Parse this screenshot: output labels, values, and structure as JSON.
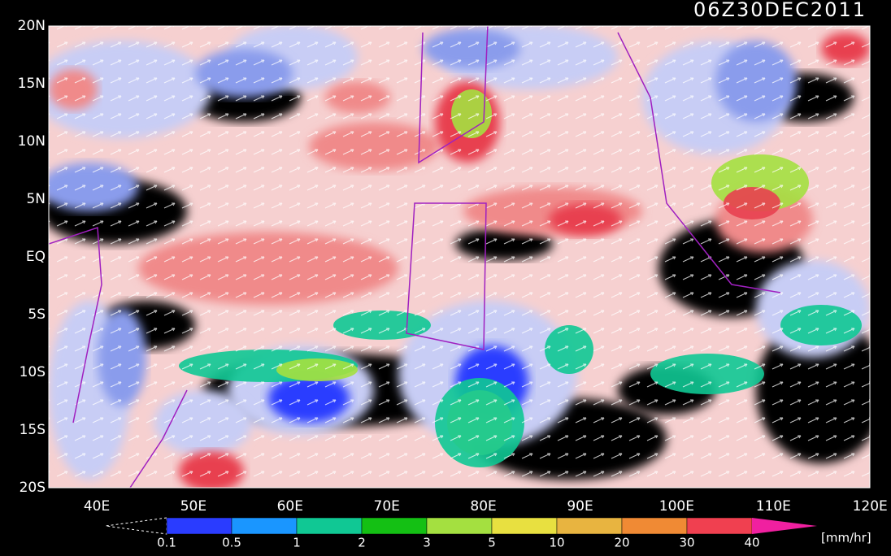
{
  "title": "06Z30DEC2011",
  "lat_labels": [
    "20N",
    "15N",
    "10N",
    "5N",
    "EQ",
    "5S",
    "10S",
    "15S",
    "20S"
  ],
  "lon_labels": [
    "40E",
    "50E",
    "60E",
    "70E",
    "80E",
    "90E",
    "100E",
    "110E",
    "120E"
  ],
  "colorbar": {
    "labels": [
      "0.1",
      "0.5",
      "1",
      "2",
      "3",
      "5",
      "10",
      "20",
      "30",
      "40"
    ],
    "colors": [
      "#2a3cff",
      "#1a96ff",
      "#10c894",
      "#14c014",
      "#a4e040",
      "#e8e040",
      "#e8b440",
      "#f08a34",
      "#f04050",
      "#f020a0"
    ],
    "unit": "[mm/hr]"
  }
}
